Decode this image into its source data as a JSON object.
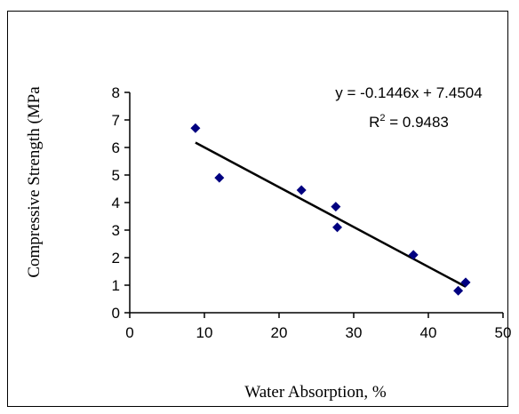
{
  "chart_data": {
    "type": "scatter",
    "title": "",
    "xlabel": "Water Absorption, %",
    "ylabel": "Compressive Strength (MPa",
    "xlim": [
      0,
      50
    ],
    "ylim": [
      0,
      8
    ],
    "x_ticks": [
      0,
      10,
      20,
      30,
      40,
      50
    ],
    "y_ticks": [
      0,
      1,
      2,
      3,
      4,
      5,
      6,
      7,
      8
    ],
    "grid": false,
    "legend": false,
    "series": [
      {
        "marker_color": "#000080",
        "points": [
          {
            "x": 8.8,
            "y": 6.7
          },
          {
            "x": 12,
            "y": 4.9
          },
          {
            "x": 23,
            "y": 4.45
          },
          {
            "x": 27.6,
            "y": 3.85
          },
          {
            "x": 27.8,
            "y": 3.1
          },
          {
            "x": 38,
            "y": 2.1
          },
          {
            "x": 44,
            "y": 0.8
          },
          {
            "x": 45,
            "y": 1.1
          }
        ]
      }
    ],
    "trendline": {
      "type": "linear",
      "slope": -0.1446,
      "intercept": 7.4504,
      "x_range": [
        8.8,
        45
      ],
      "color": "#000000"
    },
    "annotations": {
      "equation_text": "y = -0.1446x + 7.4504",
      "r2_prefix": "R",
      "r2_sup": "2",
      "r2_suffix": " = 0.9483"
    }
  }
}
